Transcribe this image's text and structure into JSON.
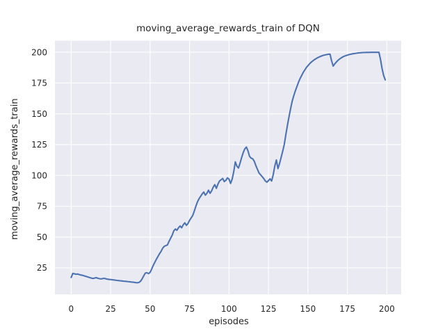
{
  "chart_data": {
    "type": "line",
    "title": "moving_average_rewards_train of DQN",
    "xlabel": "episodes",
    "ylabel": "moving_average_rewards_train",
    "grid": true,
    "legend_position": "none",
    "xticks": [
      0,
      25,
      50,
      75,
      100,
      125,
      150,
      175,
      200
    ],
    "yticks": [
      25,
      50,
      75,
      100,
      125,
      150,
      175,
      200
    ],
    "xlim": [
      -10.3,
      209.1
    ],
    "ylim": [
      3.5,
      209.3
    ],
    "colors": {
      "line": "#4c72b0",
      "plot_background": "#eaeaf2",
      "grid": "#ffffff",
      "text": "#262626",
      "figure_background": "#ffffff"
    },
    "series": [
      {
        "name": "DQN",
        "x_start": 0,
        "x_step": 1,
        "values": [
          17.2,
          20.4,
          20.2,
          19.8,
          20.0,
          19.6,
          19.2,
          19.0,
          18.6,
          18.2,
          17.8,
          17.4,
          17.0,
          16.6,
          16.4,
          16.8,
          17.0,
          16.5,
          16.2,
          16.0,
          16.3,
          16.5,
          16.1,
          15.8,
          15.6,
          15.5,
          15.3,
          15.2,
          15.0,
          14.8,
          14.7,
          14.5,
          14.4,
          14.2,
          14.1,
          14.0,
          13.8,
          13.7,
          13.5,
          13.4,
          13.2,
          13.0,
          12.9,
          13.2,
          14.2,
          16.2,
          18.6,
          20.8,
          21.0,
          20.3,
          21.3,
          24.0,
          27.0,
          29.5,
          32.0,
          34.3,
          36.5,
          38.5,
          41.0,
          42.5,
          43.0,
          43.6,
          46.5,
          49.0,
          51.5,
          55.0,
          56.5,
          55.5,
          57.5,
          59.0,
          57.5,
          60.0,
          61.5,
          59.5,
          61.0,
          63.5,
          65.5,
          67.5,
          71.0,
          75.0,
          78.5,
          81.0,
          83.0,
          85.0,
          86.5,
          84.0,
          85.5,
          88.0,
          85.5,
          87.5,
          90.5,
          92.5,
          89.5,
          93.0,
          95.5,
          96.5,
          97.5,
          95.0,
          96.0,
          98.0,
          97.0,
          93.5,
          97.0,
          103.0,
          111.0,
          107.5,
          106.0,
          110.0,
          114.5,
          118.5,
          121.5,
          123.0,
          120.0,
          115.5,
          114.0,
          113.5,
          111.5,
          108.0,
          105.0,
          102.0,
          100.5,
          99.0,
          97.5,
          95.5,
          94.5,
          95.8,
          97.2,
          95.5,
          100.5,
          107.5,
          112.5,
          105.5,
          109.5,
          114.5,
          119.5,
          125.0,
          133.0,
          140.5,
          147.5,
          154.0,
          160.0,
          164.5,
          168.5,
          172.0,
          175.5,
          178.5,
          181.0,
          183.5,
          185.5,
          187.5,
          189.0,
          190.5,
          191.8,
          192.8,
          193.8,
          194.6,
          195.4,
          196.0,
          196.6,
          197.1,
          197.5,
          197.8,
          198.1,
          198.3,
          198.4,
          193.0,
          188.7,
          190.5,
          192.0,
          193.3,
          194.4,
          195.3,
          196.1,
          196.7,
          197.2,
          197.6,
          198.0,
          198.3,
          198.6,
          198.8,
          199.0,
          199.2,
          199.4,
          199.5,
          199.6,
          199.7,
          199.7,
          199.8,
          199.8,
          199.8,
          199.9,
          199.9,
          199.9,
          199.9,
          199.9,
          199.9,
          194.0,
          186.5,
          181.0,
          177.5
        ]
      }
    ]
  }
}
